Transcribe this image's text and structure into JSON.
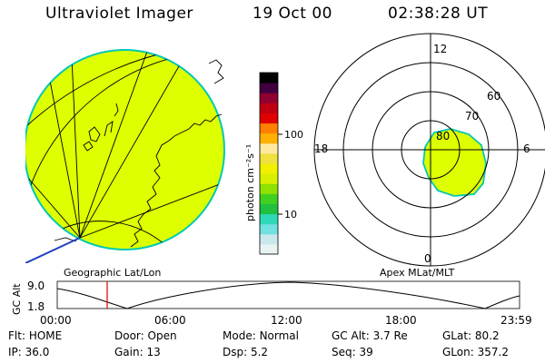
{
  "header": {
    "title": "Ultraviolet Imager",
    "date": "19 Oct 00",
    "time": "02:38:28 UT"
  },
  "colors": {
    "auroral_fill": "#ddff00",
    "limb": "#00c8b4",
    "background": "#ffffff"
  },
  "colorbar": {
    "unit_label": "photon cm⁻²s⁻¹",
    "ticks": [
      "100",
      "10"
    ],
    "scale": "log",
    "palette": [
      "#e8f4f4",
      "#c8e8ec",
      "#70e0e0",
      "#30d8b8",
      "#20c040",
      "#40d020",
      "#90e000",
      "#d8f000",
      "#f0f000",
      "#f0e040",
      "#ffe8a0",
      "#ffb000",
      "#ff8000",
      "#e00000",
      "#c00010",
      "#900030",
      "#400040",
      "#000000"
    ]
  },
  "left_panel": {
    "caption": "Geographic Lat/Lon"
  },
  "right_panel": {
    "caption": "Apex MLat/MLT",
    "mlt_labels": {
      "top": "12",
      "bottom": "0",
      "left": "18",
      "right": "6"
    },
    "lat_labels": [
      "60",
      "70",
      "80"
    ]
  },
  "altitude_plot": {
    "ylabel": "GC Alt",
    "yticks": [
      "9.0",
      "1.8"
    ],
    "xticks": [
      "00:00",
      "06:00",
      "12:00",
      "18:00",
      "23:59"
    ],
    "current_marker_time": "02:38"
  },
  "status": {
    "row1": [
      {
        "key": "Flt:",
        "value": "HOME"
      },
      {
        "key": "Door:",
        "value": "Open"
      },
      {
        "key": "Mode:",
        "value": "Normal"
      },
      {
        "key": "GC Alt:",
        "value": "3.7 Re"
      },
      {
        "key": "GLat:",
        "value": "80.2"
      }
    ],
    "row2": [
      {
        "key": "IP:",
        "value": "36.0"
      },
      {
        "key": "Gain:",
        "value": "13"
      },
      {
        "key": "Dsp:",
        "value": "5.2"
      },
      {
        "key": "Seq:",
        "value": "39"
      },
      {
        "key": "GLon:",
        "value": "357.2"
      }
    ]
  }
}
